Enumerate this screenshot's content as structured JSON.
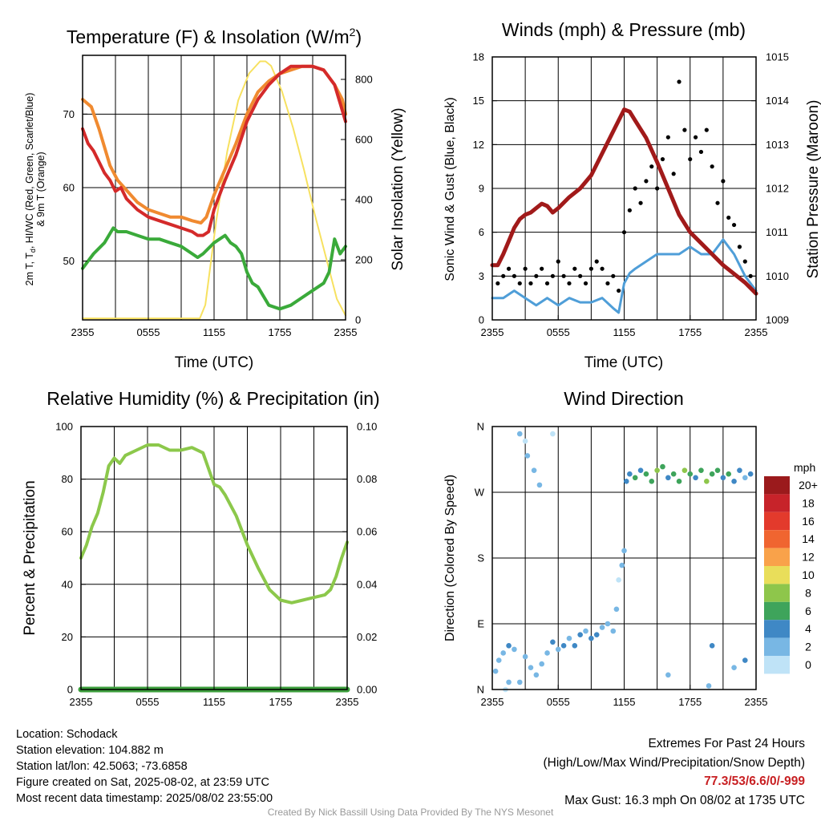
{
  "panels": {
    "temperature": {
      "title": "Temperature (F) & Insolation (W/m",
      "title_sup": "2",
      "title_close": ")",
      "y_label_line1": "2m T, T",
      "y_label_sub": "d",
      "y_label_rest": ", HI/WC (Red, Green, Scarlet/Blue)",
      "y_label_line2": "& 9m T (Orange)",
      "y2_label": "Solar Insolation (Yellow)",
      "x_label": "Time (UTC)"
    },
    "winds": {
      "title": "Winds (mph) & Pressure (mb)",
      "y_label": "Sonic Wind & Gust (Blue, Black)",
      "y2_label": "Station Pressure (Maroon)",
      "x_label": "Time (UTC)"
    },
    "humidity": {
      "title": "Relative Humidity (%) & Precipitation (in)",
      "y_label": "Percent & Precipitation"
    },
    "direction": {
      "title": "Wind Direction",
      "y_label": "Direction (Colored By Speed)",
      "legend_title": "mph"
    }
  },
  "colors": {
    "temp_red": "#d42a2a",
    "temp_orange": "#f08a30",
    "dewpoint_green": "#3aaa3a",
    "insolation_yellow": "#f7e160",
    "wind_blue": "#4f9ed8",
    "gust_black": "#000000",
    "pressure_maroon": "#a11a1a",
    "rh_green": "#8cc84b",
    "precip_green": "#3c9e3c"
  },
  "speed_scale": {
    "labels": [
      "20+",
      "18",
      "16",
      "14",
      "12",
      "10",
      "8",
      "6",
      "4",
      "2",
      "0"
    ],
    "colors": [
      "#9b1a1c",
      "#c7232a",
      "#e33a2c",
      "#f06530",
      "#f9a24a",
      "#e9de5a",
      "#8ec64b",
      "#3ea45b",
      "#3f88c5",
      "#78b7e4",
      "#bfe3f7"
    ]
  },
  "chart_data": [
    {
      "id": "temperature",
      "type": "line",
      "x_ticks": [
        "2355",
        "0555",
        "1155",
        "1755",
        "2355"
      ],
      "x_range_hours": [
        0,
        24
      ],
      "ylim": [
        42,
        78
      ],
      "y_ticks": [
        50,
        60,
        70
      ],
      "y2lim": [
        0,
        880
      ],
      "y2_ticks": [
        0,
        200,
        400,
        600,
        800
      ],
      "series": [
        {
          "name": "9m T",
          "axis": "left",
          "x": [
            0,
            0.8,
            1.5,
            2.5,
            3.2,
            3.8,
            5,
            6,
            7,
            8,
            9,
            10,
            10.8,
            11.3,
            12,
            13,
            14,
            15,
            16,
            17,
            18,
            19,
            20,
            21,
            22,
            23,
            23.7,
            24
          ],
          "y": [
            72,
            71,
            68,
            63,
            61,
            60,
            58,
            57,
            56.5,
            56,
            56,
            55.5,
            55.2,
            56,
            59,
            62.5,
            66,
            70,
            73,
            74.5,
            75.5,
            76,
            76.5,
            76.5,
            76,
            74,
            72,
            70
          ]
        },
        {
          "name": "2m T",
          "axis": "left",
          "x": [
            0,
            0.5,
            1,
            1.5,
            2,
            2.5,
            3,
            3.5,
            4,
            5,
            6,
            7,
            8,
            9,
            10,
            10.5,
            11,
            11.5,
            12,
            13,
            14,
            15,
            16,
            17,
            18,
            19,
            20,
            21,
            22,
            23,
            23.5,
            24
          ],
          "y": [
            68,
            66,
            65,
            63.5,
            62,
            61,
            59.5,
            60,
            58.5,
            57,
            56,
            55.5,
            55,
            54.5,
            54,
            53.5,
            53.5,
            54,
            57,
            61,
            64.5,
            69,
            72,
            74,
            75.5,
            76.5,
            76.5,
            76.5,
            76,
            74,
            71.5,
            69
          ]
        },
        {
          "name": "Td",
          "axis": "left",
          "x": [
            0,
            0.5,
            1,
            2,
            2.8,
            3.2,
            4,
            5,
            6,
            7,
            8,
            9,
            10,
            10.5,
            11,
            12,
            13,
            13.5,
            14,
            14.5,
            15,
            15.5,
            16,
            17,
            18,
            19,
            20,
            21,
            22,
            22.5,
            23,
            23.5,
            24
          ],
          "y": [
            49,
            50,
            51,
            52.5,
            54.5,
            54,
            54,
            53.5,
            53,
            53,
            52.5,
            52,
            51,
            50.5,
            51,
            52.5,
            53.5,
            52.5,
            52,
            51,
            48.5,
            47,
            46.5,
            44,
            43.5,
            44,
            45,
            46,
            47,
            48.5,
            53,
            51,
            52
          ]
        },
        {
          "name": "Solar Insolation",
          "axis": "right",
          "x": [
            0,
            10.7,
            11.2,
            12.2,
            13.2,
            14.2,
            15.2,
            16.2,
            16.7,
            17.2,
            18.2,
            19.2,
            20.2,
            21.2,
            22.2,
            23.2,
            24
          ],
          "y": [
            5,
            5,
            50,
            330,
            560,
            730,
            820,
            860,
            860,
            845,
            760,
            640,
            500,
            350,
            210,
            70,
            15
          ]
        }
      ]
    },
    {
      "id": "winds",
      "type": "line",
      "x_ticks": [
        "2355",
        "0555",
        "1155",
        "1755",
        "2355"
      ],
      "x_range_hours": [
        0,
        24
      ],
      "ylim": [
        0,
        18
      ],
      "y_ticks": [
        0,
        3,
        6,
        9,
        12,
        15,
        18
      ],
      "y2lim": [
        1009,
        1015
      ],
      "y2_ticks": [
        1009,
        1010,
        1011,
        1012,
        1013,
        1014,
        1015
      ],
      "series": [
        {
          "name": "Station Pressure",
          "axis": "right",
          "x": [
            0,
            0.5,
            1,
            1.5,
            2,
            2.5,
            3,
            3.5,
            4,
            4.5,
            5,
            5.5,
            6,
            7,
            8,
            9,
            10,
            11,
            12,
            12.5,
            13,
            14,
            15,
            16,
            17,
            18,
            19,
            20,
            21,
            22,
            23,
            24
          ],
          "y": [
            1010.25,
            1010.25,
            1010.5,
            1010.8,
            1011.1,
            1011.3,
            1011.4,
            1011.45,
            1011.55,
            1011.65,
            1011.6,
            1011.45,
            1011.55,
            1011.8,
            1012,
            1012.3,
            1012.8,
            1013.3,
            1013.8,
            1013.75,
            1013.55,
            1013.15,
            1012.6,
            1012.0,
            1011.4,
            1011.0,
            1010.75,
            1010.5,
            1010.25,
            1010.05,
            1009.85,
            1009.6
          ]
        },
        {
          "name": "Sonic Wind",
          "axis": "left",
          "x": [
            0,
            1,
            2,
            3,
            4,
            5,
            6,
            7,
            8,
            9,
            10,
            11,
            11.5,
            12,
            12.5,
            13,
            14,
            15,
            16,
            17,
            18,
            19,
            20,
            21,
            22,
            23,
            24
          ],
          "y": [
            1.5,
            1.5,
            2.0,
            1.5,
            1.0,
            1.5,
            1.0,
            1.5,
            1.2,
            1.2,
            1.5,
            0.8,
            0.5,
            2.5,
            3.2,
            3.5,
            4.0,
            4.5,
            4.5,
            4.5,
            5.0,
            4.5,
            4.5,
            5.5,
            4.5,
            3.0,
            2.0
          ]
        },
        {
          "name": "Gust",
          "axis": "left",
          "type": "scatter",
          "x": [
            0.5,
            1,
            1.5,
            2,
            2.5,
            3,
            3.5,
            4,
            4.5,
            5,
            5.5,
            6,
            6.5,
            7,
            7.5,
            8,
            8.5,
            9,
            9.5,
            10,
            10.5,
            11,
            11.5,
            12,
            12.5,
            13,
            13.5,
            14,
            14.5,
            15,
            15.5,
            16,
            16.5,
            17,
            17.5,
            18,
            18.5,
            19,
            19.5,
            20,
            20.5,
            21,
            21.5,
            22,
            22.5,
            23,
            23.5
          ],
          "y": [
            2.5,
            3.0,
            3.5,
            3.0,
            2.5,
            3.5,
            2.5,
            3.0,
            3.5,
            2.5,
            3.0,
            4.0,
            3.0,
            2.5,
            3.5,
            3.0,
            2.5,
            3.5,
            4.0,
            3.5,
            2.5,
            3.0,
            2.0,
            6.0,
            7.5,
            9.0,
            8.0,
            9.5,
            10.5,
            9.0,
            11.0,
            12.5,
            10.0,
            16.3,
            13.0,
            11.0,
            12.5,
            11.5,
            13.0,
            10.5,
            8.0,
            9.5,
            7.0,
            6.5,
            5.0,
            4.0,
            3.0
          ]
        }
      ]
    },
    {
      "id": "humidity",
      "type": "line",
      "x_ticks": [
        "2355",
        "0555",
        "1155",
        "1755",
        "2355"
      ],
      "x_range_hours": [
        0,
        24
      ],
      "ylim": [
        0,
        100
      ],
      "y_ticks": [
        0,
        20,
        40,
        60,
        80,
        100
      ],
      "y2lim": [
        0,
        0.1
      ],
      "y2_ticks": [
        "0.00",
        "0.02",
        "0.04",
        "0.06",
        "0.08",
        "0.10"
      ],
      "series": [
        {
          "name": "Relative Humidity",
          "axis": "left",
          "x": [
            0,
            0.5,
            1,
            1.5,
            2,
            2.5,
            3,
            3.5,
            4,
            5,
            6,
            7,
            8,
            9,
            10,
            11,
            11.5,
            12,
            12.5,
            13,
            14,
            15,
            16,
            17,
            18,
            19,
            20,
            21,
            22,
            22.5,
            23,
            23.5,
            24
          ],
          "y": [
            50,
            55,
            62,
            67,
            75,
            85,
            88,
            86,
            89,
            91,
            93,
            93,
            91,
            91,
            92,
            90,
            84,
            78,
            77,
            74,
            66,
            55,
            46,
            38,
            34,
            33,
            34,
            35,
            36,
            38,
            43,
            50,
            56
          ]
        },
        {
          "name": "Precipitation",
          "axis": "right",
          "x": [
            0,
            24
          ],
          "y": [
            0,
            0
          ]
        }
      ]
    },
    {
      "id": "direction",
      "type": "scatter",
      "x_ticks": [
        "2355",
        "0555",
        "1155",
        "1755",
        "2355"
      ],
      "x_range_hours": [
        0,
        24
      ],
      "y_ticks": [
        "N",
        "E",
        "S",
        "W",
        "N"
      ],
      "ylim": [
        0,
        360
      ],
      "points": {
        "x": [
          0.3,
          0.6,
          1.0,
          1.5,
          2.0,
          2.5,
          3.0,
          3.5,
          4.0,
          4.5,
          5.0,
          5.5,
          6.0,
          6.5,
          7.0,
          7.5,
          8.0,
          8.5,
          9.0,
          9.5,
          10.0,
          10.5,
          11.0,
          11.3,
          11.5,
          11.8,
          12.0,
          12.2,
          12.5,
          13.0,
          13.5,
          14.0,
          14.5,
          15.0,
          15.5,
          16.0,
          16.5,
          17.0,
          17.5,
          18.0,
          18.5,
          19.0,
          19.5,
          20.0,
          20.5,
          21.0,
          21.5,
          22.0,
          22.5,
          23.0,
          23.5,
          2.5,
          3.0,
          3.2,
          3.8,
          1.5,
          1.2,
          4.3,
          5.5,
          19.7,
          20.0,
          16.0,
          22.0,
          23.0
        ],
        "direction_deg": [
          25,
          40,
          50,
          60,
          55,
          10,
          45,
          30,
          20,
          35,
          50,
          65,
          55,
          60,
          70,
          60,
          75,
          80,
          70,
          75,
          85,
          90,
          80,
          110,
          150,
          170,
          190,
          285,
          295,
          290,
          300,
          295,
          285,
          300,
          305,
          290,
          295,
          285,
          300,
          295,
          290,
          300,
          285,
          295,
          300,
          290,
          295,
          285,
          300,
          290,
          295,
          350,
          340,
          320,
          300,
          10,
          0,
          280,
          350,
          5,
          60,
          20,
          30,
          40
        ],
        "speed_mph": [
          1,
          2,
          2,
          3,
          2,
          1,
          2,
          2,
          1,
          2,
          2,
          3,
          2,
          3,
          2,
          3,
          3,
          2,
          3,
          3,
          2,
          2,
          1,
          1,
          0,
          1,
          2,
          3,
          4,
          5,
          4,
          6,
          5,
          7,
          6,
          4,
          5,
          6,
          7,
          5,
          4,
          6,
          7,
          5,
          6,
          4,
          5,
          3,
          4,
          2,
          3,
          1,
          0,
          2,
          1,
          1,
          0,
          1,
          0,
          2,
          3,
          2,
          2,
          3
        ]
      }
    }
  ],
  "info": {
    "location": "Location: Schodack",
    "elevation": "Station elevation: 104.882 m",
    "latlon": "Station lat/lon: 42.5063; -73.6858",
    "created": "Figure created on Sat, 2025-08-02, at 23:59 UTC",
    "recent": "Most recent data timestamp: 2025/08/02 23:55:00",
    "extremes_title": "Extremes For Past 24 Hours",
    "extremes_fields": "(High/Low/Max Wind/Precipitation/Snow Depth)",
    "extremes_values": "77.3/53/6.6/0/-999",
    "max_gust": "Max Gust: 16.3 mph On 08/02 at 1735 UTC",
    "credit": "Created By Nick Bassill Using Data Provided By The NYS Mesonet"
  }
}
